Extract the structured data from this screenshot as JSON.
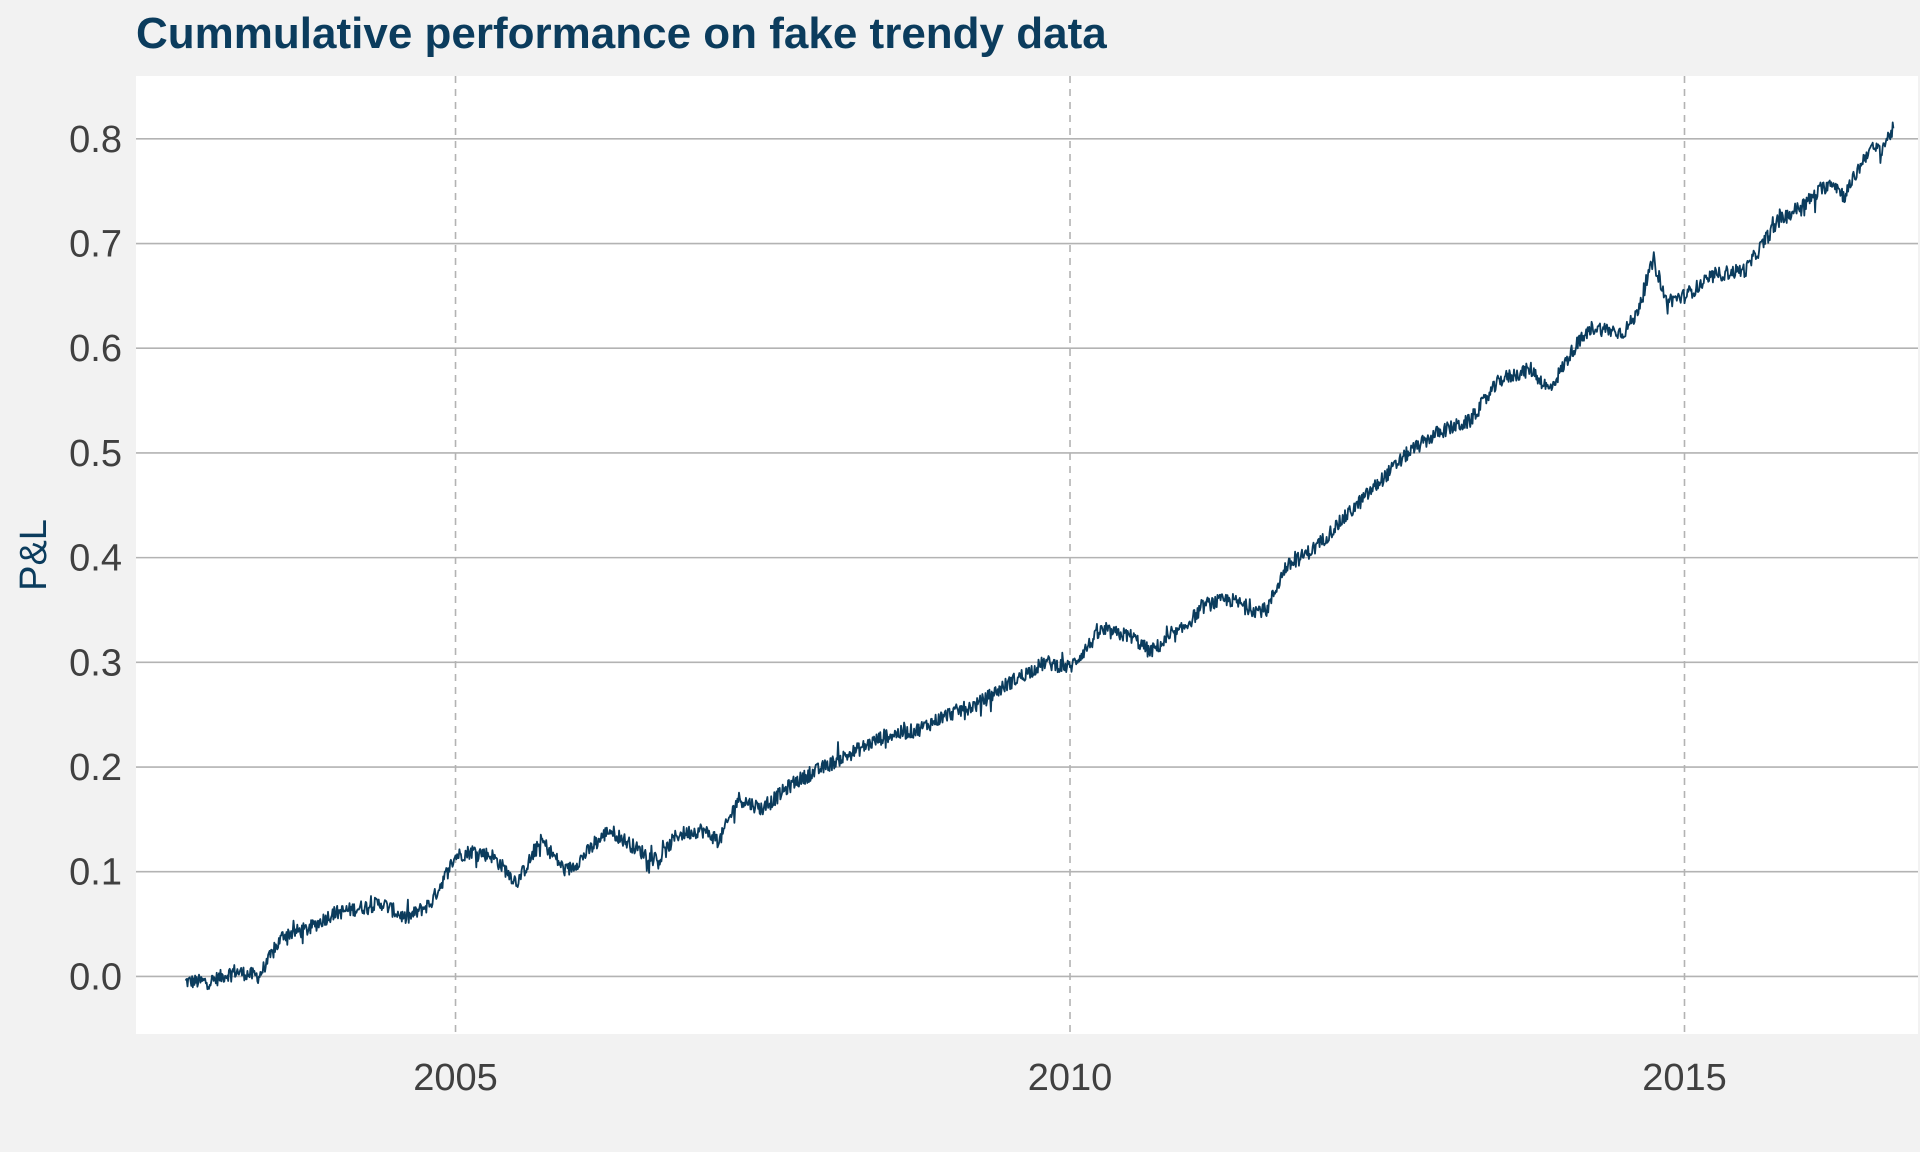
{
  "chart_data": {
    "type": "line",
    "title": "Cummulative performance on fake trendy data",
    "xlabel": "",
    "ylabel": "P&L",
    "x_ticks": [
      "2005",
      "2010",
      "2015"
    ],
    "x_tick_values": [
      2005,
      2010,
      2015
    ],
    "y_ticks": [
      "0.0",
      "0.1",
      "0.2",
      "0.3",
      "0.4",
      "0.5",
      "0.6",
      "0.7",
      "0.8"
    ],
    "y_tick_values": [
      0.0,
      0.1,
      0.2,
      0.3,
      0.4,
      0.5,
      0.6,
      0.7,
      0.8
    ],
    "xlim": [
      2002.4,
      2016.9
    ],
    "ylim": [
      -0.055,
      0.86
    ],
    "grid": true,
    "legend": "none",
    "series": [
      {
        "color": "#0b3c5d",
        "x": [
          2002.8,
          2003.0,
          2003.2,
          2003.4,
          2003.6,
          2003.8,
          2004.0,
          2004.2,
          2004.4,
          2004.6,
          2004.8,
          2005.0,
          2005.15,
          2005.3,
          2005.5,
          2005.7,
          2005.9,
          2006.0,
          2006.25,
          2006.5,
          2006.65,
          2006.8,
          2007.0,
          2007.15,
          2007.3,
          2007.5,
          2007.75,
          2008.0,
          2008.25,
          2008.5,
          2008.75,
          2009.0,
          2009.25,
          2009.5,
          2009.8,
          2010.0,
          2010.25,
          2010.5,
          2010.65,
          2010.9,
          2011.1,
          2011.3,
          2011.5,
          2011.6,
          2011.75,
          2012.0,
          2012.25,
          2012.5,
          2012.75,
          2013.0,
          2013.25,
          2013.5,
          2013.75,
          2013.9,
          2014.1,
          2014.25,
          2014.5,
          2014.6,
          2014.75,
          2014.85,
          2015.0,
          2015.25,
          2015.5,
          2015.75,
          2016.0,
          2016.2,
          2016.3,
          2016.5,
          2016.6,
          2016.7
        ],
        "values": [
          -0.005,
          -0.005,
          0.005,
          0.0,
          0.04,
          0.045,
          0.06,
          0.065,
          0.07,
          0.055,
          0.07,
          0.115,
          0.12,
          0.115,
          0.09,
          0.13,
          0.1,
          0.11,
          0.14,
          0.12,
          0.11,
          0.135,
          0.14,
          0.13,
          0.17,
          0.16,
          0.185,
          0.2,
          0.215,
          0.23,
          0.235,
          0.25,
          0.26,
          0.28,
          0.3,
          0.295,
          0.33,
          0.325,
          0.31,
          0.33,
          0.355,
          0.36,
          0.35,
          0.35,
          0.39,
          0.41,
          0.44,
          0.47,
          0.5,
          0.52,
          0.53,
          0.57,
          0.58,
          0.56,
          0.6,
          0.62,
          0.615,
          0.63,
          0.685,
          0.645,
          0.65,
          0.67,
          0.675,
          0.72,
          0.74,
          0.76,
          0.745,
          0.79,
          0.79,
          0.81
        ]
      }
    ]
  }
}
